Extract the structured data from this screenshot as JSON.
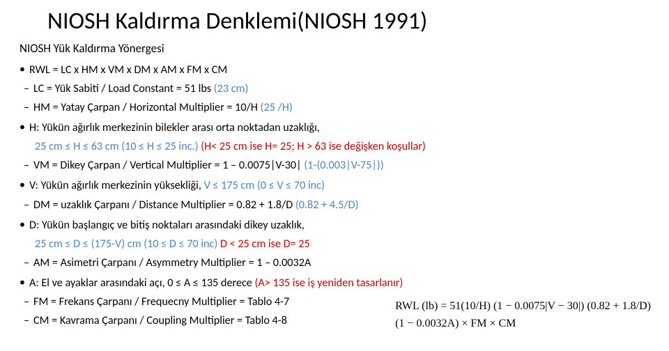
{
  "title": "NIOSH Kaldırma Denklemi(NIOSH 1991)",
  "subtitle": "NIOSH Yük Kaldırma Yönergesi",
  "rwl_line": "RWL = LC x HM x VM x DM x AM x FM x CM",
  "lc": {
    "pre": "LC = Yük Sabiti / Load Constant = 51 lbs ",
    "blue": "(23 cm)"
  },
  "hm": {
    "pre": "HM = Yatay Çarpan / Horizontal Multiplier = 10/H ",
    "blue": "(25 /H)"
  },
  "h_note": {
    "pre": "H: Yükün ağırlık merkezinin bilekler arası orta noktadan uzaklığı,"
  },
  "h_range": {
    "blue1": "25 cm ≤ H ≤ 63 cm (10 ≤ H ≤ 25 inc.) ",
    "red": "(H< 25 cm ise H= 25; H > 63 ise değişken koşullar)"
  },
  "vm": {
    "pre": "VM = Dikey Çarpan / Vertical Multiplier = 1 – 0.0075|V-30| ",
    "blue": "(1-(0.003|V-75|))"
  },
  "v_note": {
    "pre": "V: Yükün ağırlık merkezinin yüksekliği, ",
    "blue": "V ≤ 175 cm (0 ≤ V ≤ 70 inc)"
  },
  "dm": {
    "pre": "DM = uzaklık Çarpanı / Distance Multiplier = 0.82 + 1.8/D ",
    "blue": "(0.82 + 4.5/D)"
  },
  "d_note": {
    "pre": "D: Yükün başlangıç ve bitiş noktaları arasındaki dikey uzaklık,"
  },
  "d_range": {
    "blue1": "25 cm ≤ D ≤ (175-V) cm (10 ≤ D ≤ 70 inc) ",
    "red": "D < 25 cm ise D= 25"
  },
  "am": {
    "pre": "AM = Asimetri Çarpanı / Asymmetry Multiplier = 1 – 0.0032A"
  },
  "a_note": {
    "pre": "A: El ve ayaklar arasındaki açı, 0 ≤ A ≤ 135 derece ",
    "red": "(A> 135 ise iş yeniden tasarlanır)"
  },
  "fm": {
    "pre": "FM = Frekans Çarpanı / Frequecny Multiplier = Tablo 4-7"
  },
  "cm": {
    "pre": "CM = Kavrama Çarpanı / Coupling Multiplier = Tablo 4-8"
  },
  "formula_serif": "RWL (lb) = 51(10/H) (1 − 0.0075|V − 30|) (0.82 + 1.8/D)\n(1 − 0.0032A) × FM × CM",
  "formula_l1": "RWL (lb) = 51(10/H) (1 − 0.0075|V − 30|) (0.82 + 1.8/D)",
  "formula_l2": "(1 − 0.0032A) × FM × CM"
}
